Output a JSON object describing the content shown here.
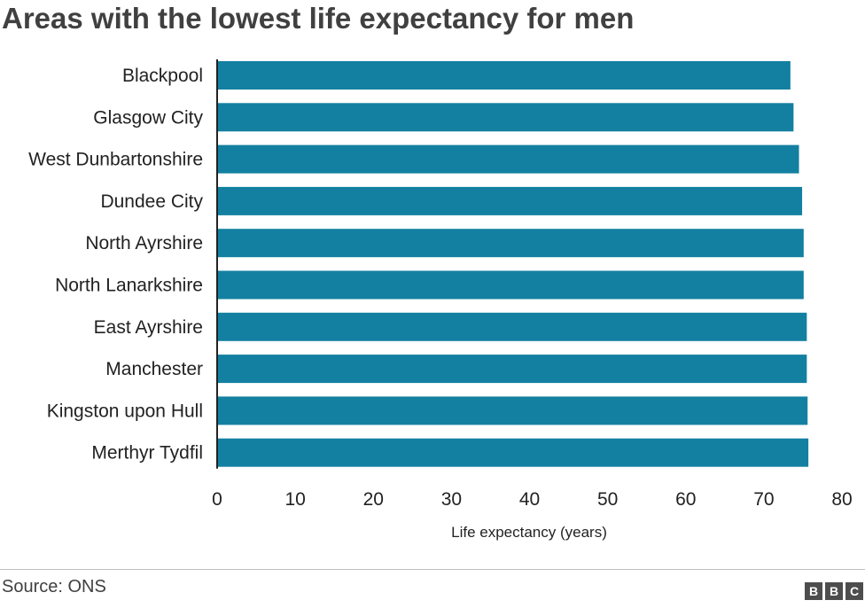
{
  "chart_data": {
    "type": "bar",
    "orientation": "horizontal",
    "title": "Areas with the lowest life expectancy for men",
    "xlabel": "Life expectancy (years)",
    "ylabel": "",
    "categories": [
      "Blackpool",
      "Glasgow City",
      "West Dunbartonshire",
      "Dundee City",
      "North Ayrshire",
      "North Lanarkshire",
      "East Ayrshire",
      "Manchester",
      "Kingston upon Hull",
      "Merthyr Tydfil"
    ],
    "values": [
      73.4,
      73.8,
      74.5,
      74.9,
      75.1,
      75.1,
      75.5,
      75.5,
      75.6,
      75.7
    ],
    "xlim": [
      0,
      80
    ],
    "xticks": [
      0,
      10,
      20,
      30,
      40,
      50,
      60,
      70,
      80
    ],
    "grid": false,
    "bar_color": "#1380a1"
  },
  "footer": {
    "source": "Source: ONS",
    "logo": [
      "B",
      "B",
      "C"
    ]
  }
}
